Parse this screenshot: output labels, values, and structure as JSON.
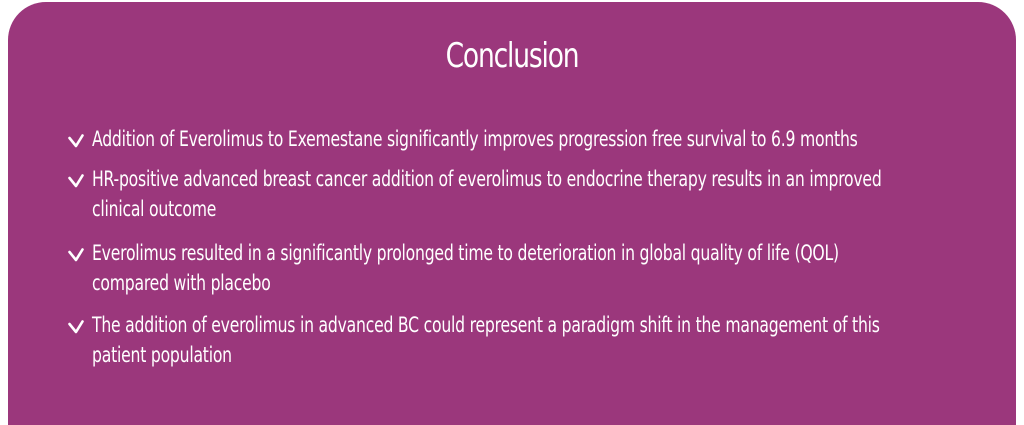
{
  "panel": {
    "title": "Conclusion",
    "bullet_icon": "check-icon",
    "bullets": [
      {
        "lines": [
          "Addition of Everolimus to Exemestane significantly improves progression free survival to 6.9 months"
        ]
      },
      {
        "lines": [
          "HR-positive advanced breast cancer addition of everolimus to endocrine therapy results in an improved",
          "clinical outcome"
        ]
      },
      {
        "lines": [
          "Everolimus resulted in a significantly prolonged time to deterioration in global quality of life (QOL)",
          "compared with placebo"
        ]
      },
      {
        "lines": [
          "The addition of everolimus in advanced BC could represent a paradigm shift in the management of this",
          "patient population"
        ]
      }
    ]
  },
  "colors": {
    "panel_background": "#9b377c",
    "text": "#ffffff"
  }
}
